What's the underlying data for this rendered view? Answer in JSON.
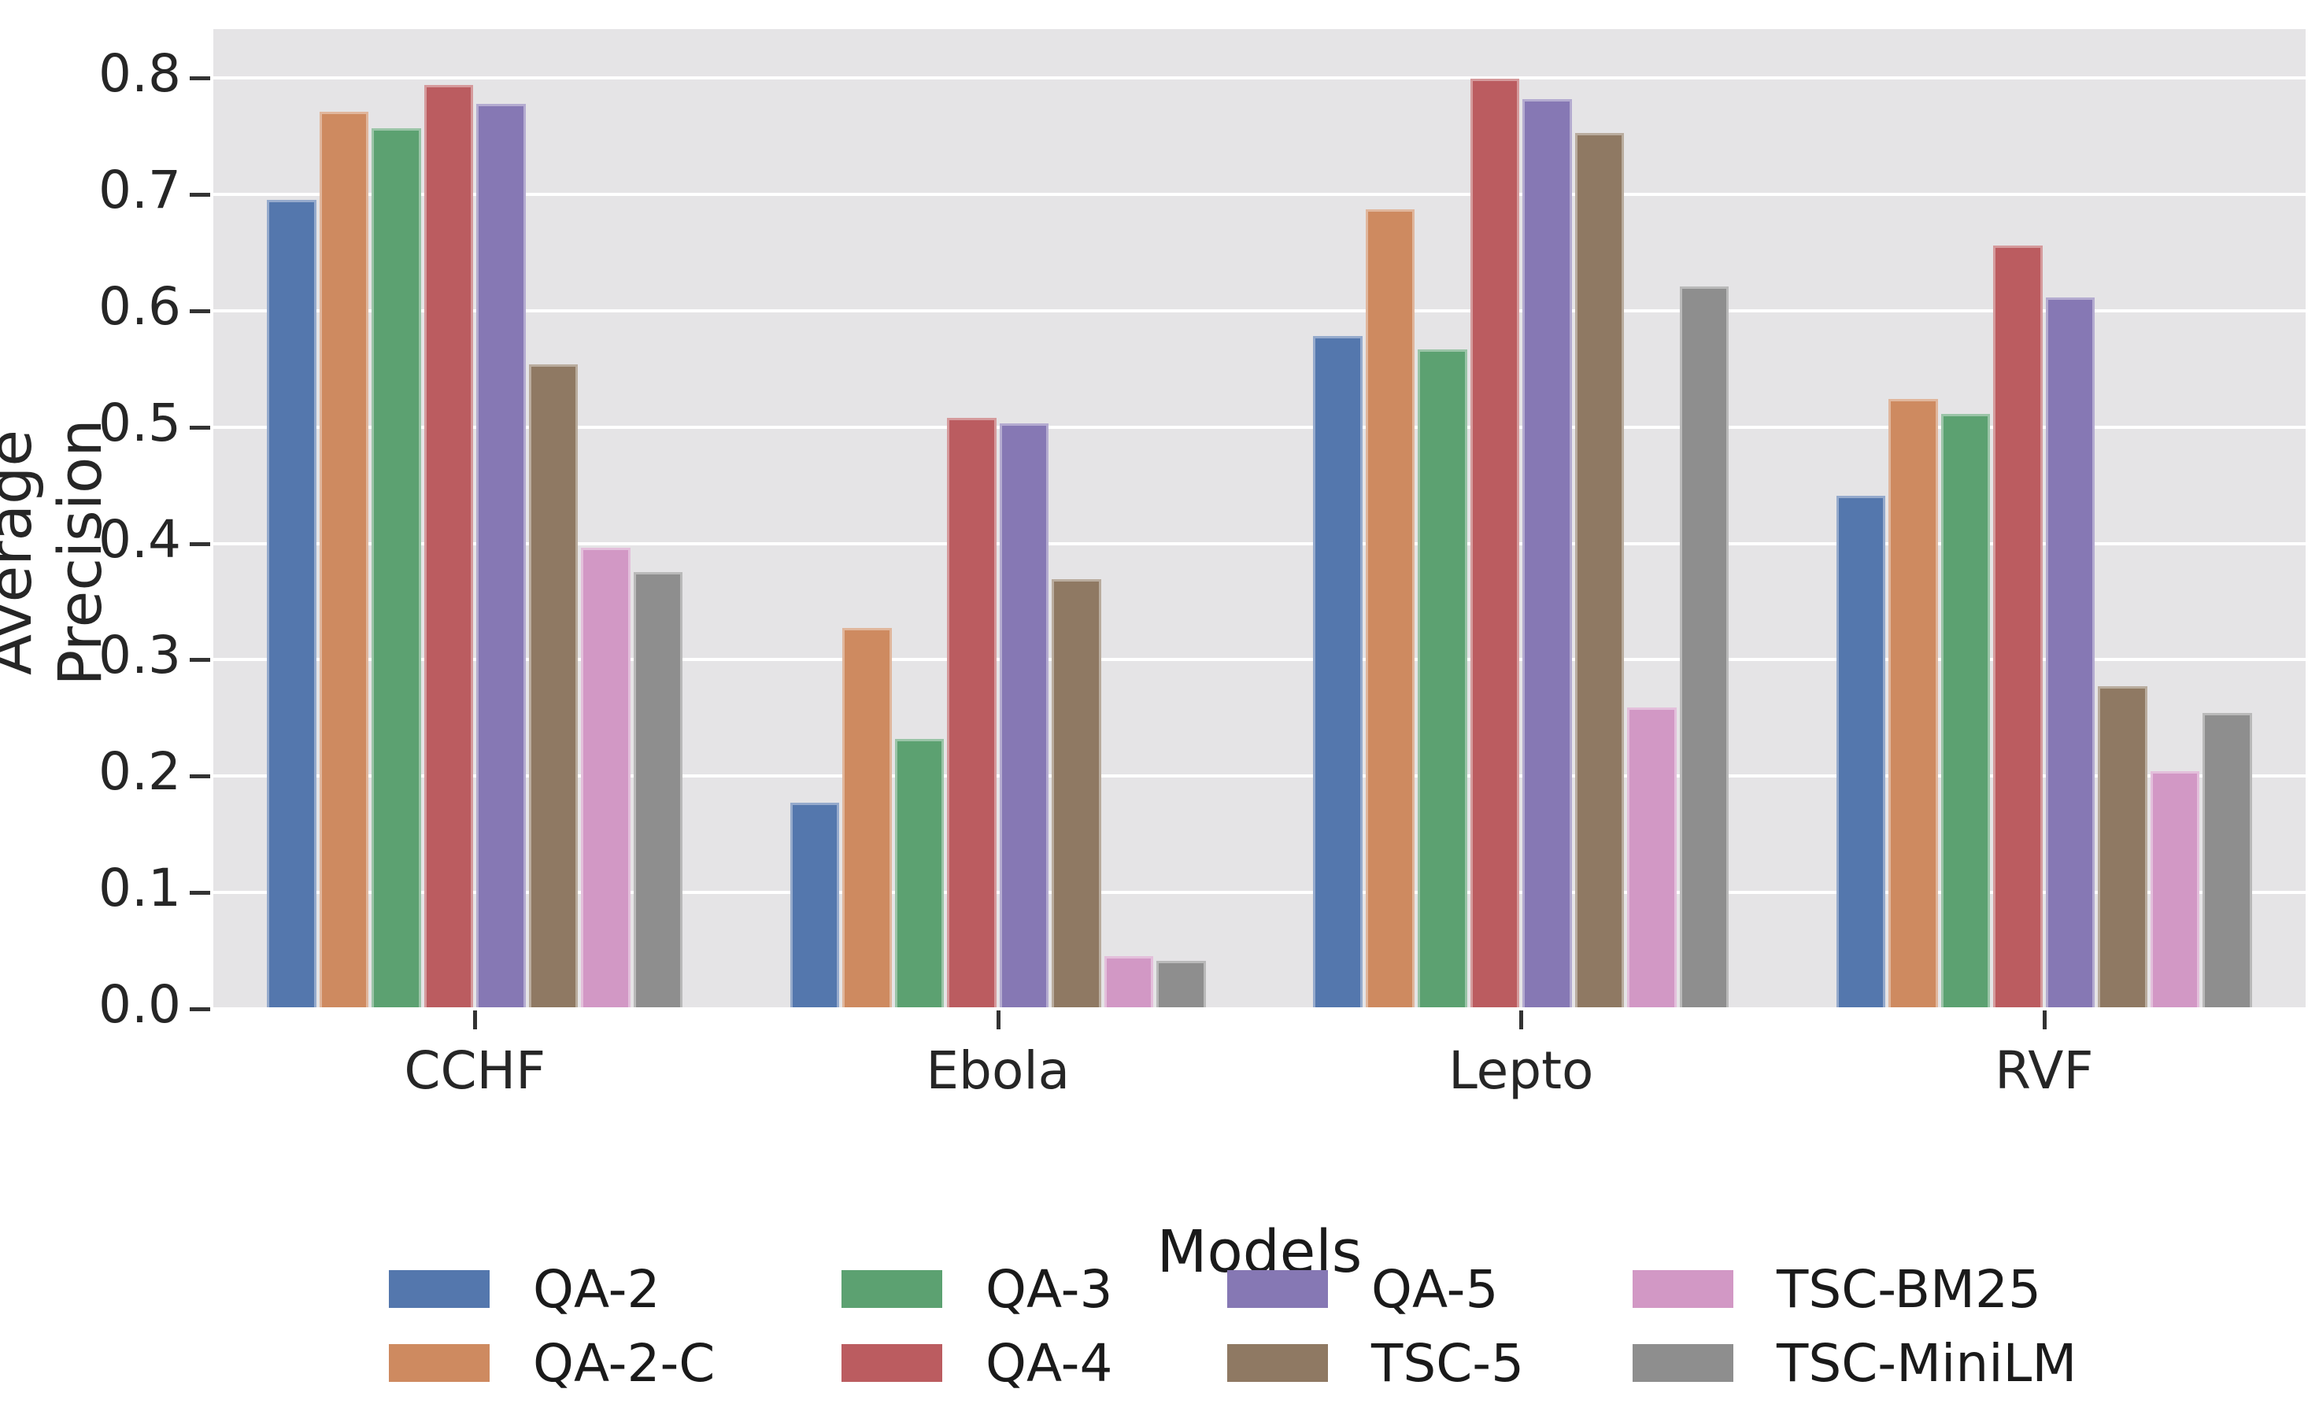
{
  "chart_data": {
    "type": "bar",
    "title": "",
    "xlabel": "Models",
    "ylabel": "Average Precision",
    "categories": [
      "CCHF",
      "Ebola",
      "Lepto",
      "RVF"
    ],
    "series": [
      {
        "name": "QA-2",
        "color": "#5477AD",
        "values": [
          0.695,
          0.177,
          0.578,
          0.441
        ]
      },
      {
        "name": "QA-2-C",
        "color": "#CE8A60",
        "values": [
          0.771,
          0.327,
          0.687,
          0.524
        ]
      },
      {
        "name": "QA-3",
        "color": "#5CA171",
        "values": [
          0.757,
          0.232,
          0.567,
          0.511
        ]
      },
      {
        "name": "QA-4",
        "color": "#BB5C60",
        "values": [
          0.794,
          0.508,
          0.799,
          0.656
        ]
      },
      {
        "name": "QA-5",
        "color": "#8678B4",
        "values": [
          0.778,
          0.503,
          0.782,
          0.611
        ]
      },
      {
        "name": "TSC-5",
        "color": "#8F7963",
        "values": [
          0.554,
          0.369,
          0.753,
          0.277
        ]
      },
      {
        "name": "TSC-BM25",
        "color": "#D298C5",
        "values": [
          0.396,
          0.045,
          0.259,
          0.204
        ]
      },
      {
        "name": "TSC-MiniLM",
        "color": "#8E8E8E",
        "values": [
          0.375,
          0.041,
          0.621,
          0.254
        ]
      }
    ],
    "yticks": [
      "0.0",
      "0.1",
      "0.2",
      "0.3",
      "0.4",
      "0.5",
      "0.6",
      "0.7",
      "0.8"
    ],
    "ylim": [
      0.0,
      0.842
    ],
    "grid": "white horizontal lines on light gray background",
    "legend_position": "below chart, 4 columns, column-major order",
    "legend_columns": [
      [
        "QA-2",
        "QA-2-C"
      ],
      [
        "QA-3",
        "QA-4"
      ],
      [
        "QA-5",
        "TSC-5"
      ],
      [
        "TSC-BM25",
        "TSC-MiniLM"
      ]
    ],
    "colors": {
      "plot_background": "#E5E4E6",
      "gridline": "#ffffff",
      "tick_mark": "#333333",
      "text": "#262626"
    }
  }
}
